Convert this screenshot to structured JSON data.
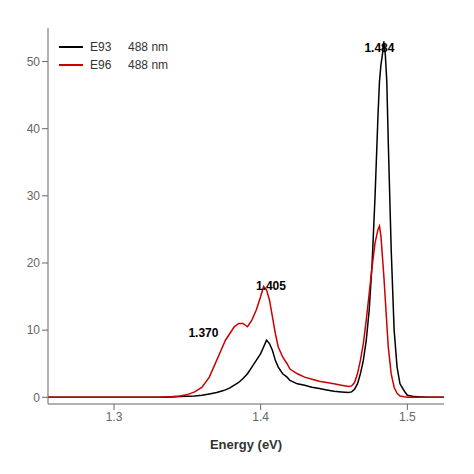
{
  "chart_data": {
    "type": "line",
    "xlabel": "Energy (eV)",
    "xlim": [
      1.255,
      1.525
    ],
    "ylim": [
      -1,
      55
    ],
    "xticks": [
      1.3,
      1.4,
      1.5
    ],
    "yticks": [
      0,
      10,
      20,
      30,
      40,
      50
    ],
    "grid": false,
    "legend": "upper left",
    "annotations": [
      {
        "text": "1.484",
        "x": 1.481,
        "y": 51.0
      },
      {
        "text": "1.405",
        "x": 1.407,
        "y": 15.5
      },
      {
        "text": "1.370",
        "x": 1.361,
        "y": 8.5
      }
    ],
    "x": [
      1.255,
      1.27,
      1.28,
      1.29,
      1.3,
      1.31,
      1.32,
      1.33,
      1.34,
      1.345,
      1.35,
      1.355,
      1.36,
      1.365,
      1.37,
      1.373,
      1.376,
      1.379,
      1.382,
      1.385,
      1.388,
      1.391,
      1.394,
      1.397,
      1.4,
      1.402,
      1.404,
      1.406,
      1.408,
      1.41,
      1.412,
      1.415,
      1.418,
      1.42,
      1.425,
      1.43,
      1.435,
      1.44,
      1.445,
      1.45,
      1.455,
      1.46,
      1.462,
      1.464,
      1.466,
      1.468,
      1.47,
      1.472,
      1.474,
      1.476,
      1.478,
      1.48,
      1.481,
      1.482,
      1.483,
      1.484,
      1.485,
      1.486,
      1.487,
      1.489,
      1.491,
      1.493,
      1.495,
      1.498,
      1.5,
      1.505,
      1.51,
      1.515,
      1.52,
      1.525
    ],
    "series": [
      {
        "name": "E93     488 nm",
        "color": "#000000",
        "values": [
          0,
          0,
          0,
          0,
          0,
          0,
          0,
          0,
          0.05,
          0.1,
          0.15,
          0.2,
          0.3,
          0.5,
          0.7,
          0.9,
          1.1,
          1.4,
          1.8,
          2.2,
          2.8,
          3.5,
          4.5,
          5.5,
          6.5,
          7.5,
          8.5,
          8.0,
          7.0,
          5.5,
          4.5,
          3.5,
          3.0,
          2.5,
          2.0,
          1.8,
          1.5,
          1.3,
          1.1,
          0.9,
          0.8,
          0.7,
          0.8,
          1.2,
          2.0,
          3.5,
          5.5,
          8.5,
          13.0,
          20.0,
          30.0,
          42.0,
          47.0,
          49.5,
          51.0,
          53.0,
          51.0,
          47.0,
          38.0,
          22.0,
          10.0,
          4.5,
          2.0,
          0.9,
          0.3,
          0.1,
          0.05,
          0.02,
          0.01,
          0
        ]
      },
      {
        "name": "E96     488 nm",
        "color": "#cc0000",
        "values": [
          0,
          0,
          0,
          0,
          0,
          0,
          0,
          0,
          0.1,
          0.2,
          0.4,
          0.8,
          1.5,
          3.0,
          5.5,
          7.0,
          8.5,
          9.5,
          10.5,
          11.0,
          11.0,
          10.5,
          11.5,
          13.0,
          15.0,
          16.5,
          16.0,
          14.5,
          12.0,
          9.5,
          7.5,
          6.0,
          5.0,
          4.2,
          3.5,
          3.0,
          2.7,
          2.4,
          2.2,
          2.0,
          1.8,
          1.6,
          1.7,
          2.2,
          3.5,
          5.5,
          8.0,
          11.5,
          15.5,
          19.5,
          23.0,
          25.0,
          25.5,
          24.0,
          21.0,
          18.0,
          14.5,
          11.0,
          7.5,
          3.5,
          1.5,
          0.6,
          0.2,
          0.07,
          0.02,
          0.01,
          0,
          0,
          0,
          0
        ]
      }
    ]
  }
}
